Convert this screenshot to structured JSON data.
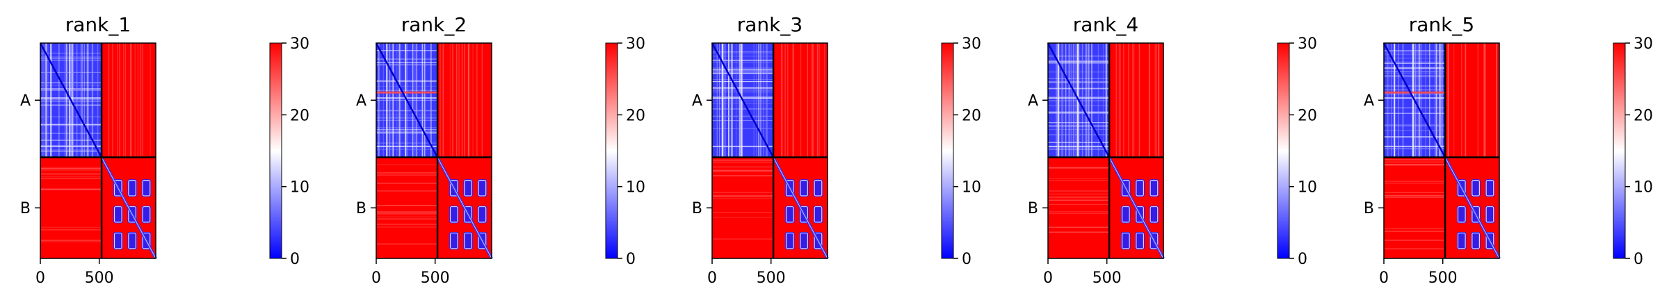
{
  "figure": {
    "colorbar_ticks": [
      "0",
      "10",
      "20",
      "30"
    ],
    "colormap": {
      "low": "#0000ff",
      "mid": "#ffffff",
      "high": "#ff0000"
    }
  },
  "chart_data": [
    {
      "type": "heatmap",
      "title": "rank_1",
      "x_ticks": [
        0,
        500
      ],
      "xlim": [
        0,
        980
      ],
      "y_categories": [
        "A",
        "B"
      ],
      "chain_break": 520,
      "colorbar_range": [
        0,
        30
      ],
      "colorbar_ticks": [
        0,
        10,
        20,
        30
      ]
    },
    {
      "type": "heatmap",
      "title": "rank_2",
      "x_ticks": [
        0,
        500
      ],
      "xlim": [
        0,
        980
      ],
      "y_categories": [
        "A",
        "B"
      ],
      "chain_break": 520,
      "colorbar_range": [
        0,
        30
      ],
      "colorbar_ticks": [
        0,
        10,
        20,
        30
      ]
    },
    {
      "type": "heatmap",
      "title": "rank_3",
      "x_ticks": [
        0,
        500
      ],
      "xlim": [
        0,
        980
      ],
      "y_categories": [
        "A",
        "B"
      ],
      "chain_break": 520,
      "colorbar_range": [
        0,
        30
      ],
      "colorbar_ticks": [
        0,
        10,
        20,
        30
      ]
    },
    {
      "type": "heatmap",
      "title": "rank_4",
      "x_ticks": [
        0,
        500
      ],
      "xlim": [
        0,
        980
      ],
      "y_categories": [
        "A",
        "B"
      ],
      "chain_break": 520,
      "colorbar_range": [
        0,
        30
      ],
      "colorbar_ticks": [
        0,
        10,
        20,
        30
      ]
    },
    {
      "type": "heatmap",
      "title": "rank_5",
      "x_ticks": [
        0,
        500
      ],
      "xlim": [
        0,
        980
      ],
      "y_categories": [
        "A",
        "B"
      ],
      "chain_break": 520,
      "colorbar_range": [
        0,
        30
      ],
      "colorbar_ticks": [
        0,
        10,
        20,
        30
      ]
    }
  ]
}
